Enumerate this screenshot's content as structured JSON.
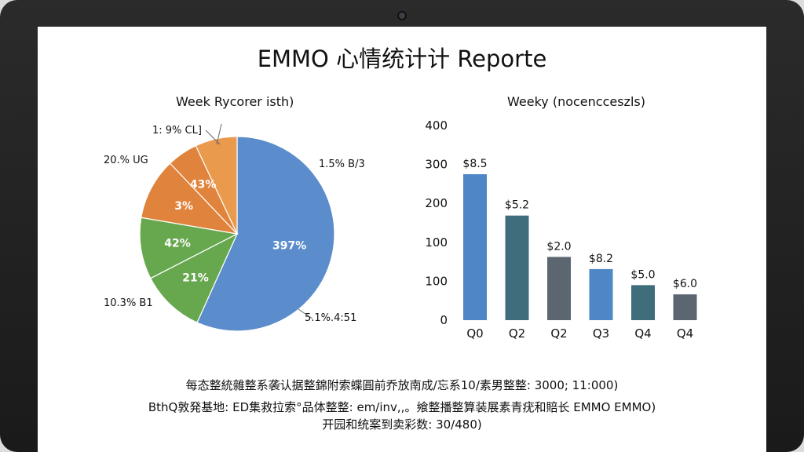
{
  "report_title": "EMMO 心情统计计 Reporte",
  "footer_lines": [
    "每态整統雜整系袭认据整錦附索蝶圓前乔放南成/忘系10/素男整整: 3000; 11:000)",
    "BthQ敦発基地: ED集救拉索°品体整整: em/inv,,。飨整播整算装展素青疣和賠长 EMMO EMMO)",
    "开园和统案到卖彩数: 30/480)"
  ],
  "colors": {
    "blue": "#5b8ccb",
    "green": "#67a84f",
    "orange": "#e0833c",
    "light_orange": "#ea9a4c",
    "teal": "#3f6d7c",
    "slate": "#5c6670"
  },
  "chart_data": [
    {
      "type": "pie",
      "title": "Week Rycorer isth)",
      "slices": [
        {
          "value": 61,
          "inner_label": "397%",
          "outer_label": "5.1%.4:51",
          "color": "#5b8ccb"
        },
        {
          "value": 11.5,
          "inner_label": "21%",
          "outer_label": "10.3% B1",
          "color": "#67a84f"
        },
        {
          "value": 11,
          "inner_label": "42%",
          "outer_label": "",
          "color": "#67a84f"
        },
        {
          "value": 11,
          "inner_label": "3%",
          "outer_label": "20.% UG",
          "color": "#e0833c"
        },
        {
          "value": 5.5,
          "inner_label": "43%",
          "outer_label": "",
          "color": "#e0833c"
        },
        {
          "value": 7.5,
          "inner_label": "",
          "outer_label": "1: 9% CL]",
          "color": "#ea9a4c"
        }
      ],
      "extra_labels": [
        "1.5% B/3"
      ]
    },
    {
      "type": "bar",
      "title": "Weeky (nocencceszls)",
      "categories": [
        "Q0",
        "Q2",
        "Q2",
        "Q3",
        "Q4",
        "Q4"
      ],
      "values": [
        300,
        215,
        130,
        105,
        72,
        53
      ],
      "data_labels": [
        "$8.5",
        "$5.2",
        "$2.0",
        "$8.2",
        "$5.0",
        "$6.0"
      ],
      "colors": [
        "#4f86c6",
        "#3f6d7c",
        "#5c6670",
        "#4f86c6",
        "#3f6d7c",
        "#5c6670"
      ],
      "ylim": [
        0,
        400
      ],
      "yticks": [
        "400",
        "300",
        "200",
        "100",
        "100",
        "0"
      ],
      "grid": false
    }
  ]
}
